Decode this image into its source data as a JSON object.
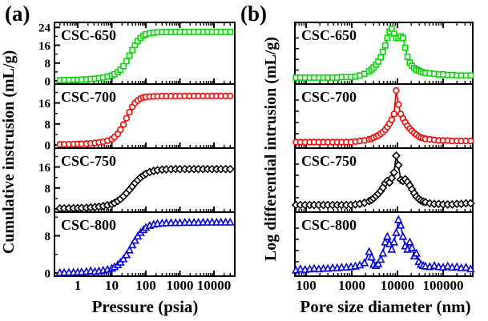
{
  "figure": {
    "description": "Mercury intrusion porosimetry curves of CSC samples"
  },
  "chart_data": [
    {
      "type": "line",
      "panel": "(a)",
      "xlabel": "Pressure (psia)",
      "ylabel": "Cumulative instrusion (mL/g)",
      "x_scale": "log",
      "x_ticks": [
        1,
        10,
        100,
        1000,
        10000
      ],
      "x_range": [
        0.25,
        38000
      ],
      "grid": false,
      "legend": "labels inside each stacked subplot",
      "series": [
        {
          "name": "CSC-650",
          "color": "#00DC00",
          "marker": "square",
          "y_ticks": [
            0,
            8,
            16,
            24
          ],
          "y_max": 24.8,
          "x": [
            0.3,
            0.4,
            0.55,
            0.75,
            1,
            1.3,
            1.8,
            2.4,
            3.2,
            4.2,
            5.6,
            7.5,
            10,
            12,
            15,
            18,
            22,
            27,
            33,
            40,
            48,
            58,
            70,
            85,
            100,
            130,
            170,
            220,
            300,
            400,
            550,
            750,
            1000,
            1400,
            1900,
            2600,
            3500,
            4800,
            6500,
            8800,
            12000,
            16000,
            22000,
            30000
          ],
          "y": [
            0.3,
            0.35,
            0.4,
            0.45,
            0.5,
            0.6,
            0.7,
            0.85,
            1.0,
            1.2,
            1.5,
            1.9,
            2.4,
            3.0,
            3.9,
            5.0,
            6.6,
            8.8,
            11.3,
            13.8,
            16.0,
            17.9,
            19.3,
            20.3,
            20.9,
            21.4,
            21.6,
            21.8,
            21.85,
            21.9,
            21.9,
            21.95,
            22,
            22,
            22,
            22,
            22,
            22,
            22,
            22,
            22,
            22,
            22,
            22
          ]
        },
        {
          "name": "CSC-700",
          "color": "#FF0000",
          "marker": "circle",
          "y_ticks": [
            0,
            8,
            16
          ],
          "y_max": 22,
          "x": [
            0.3,
            0.4,
            0.55,
            0.75,
            1,
            1.3,
            1.8,
            2.4,
            3.2,
            4.2,
            5.6,
            7.5,
            10,
            12,
            15,
            18,
            22,
            27,
            33,
            40,
            48,
            58,
            70,
            85,
            100,
            130,
            170,
            220,
            300,
            400,
            550,
            750,
            1000,
            1400,
            1900,
            2600,
            3500,
            4800,
            6500,
            8800,
            12000,
            16000,
            22000,
            30000
          ],
          "y": [
            0.2,
            0.22,
            0.25,
            0.3,
            0.35,
            0.4,
            0.5,
            0.6,
            0.75,
            0.95,
            1.2,
            1.6,
            2.2,
            3.0,
            4.2,
            5.8,
            7.8,
            10.2,
            12.5,
            14.5,
            16.0,
            17.0,
            17.7,
            18.1,
            18.3,
            18.45,
            18.5,
            18.55,
            18.6,
            18.6,
            18.6,
            18.6,
            18.6,
            18.65,
            18.65,
            18.65,
            18.65,
            18.65,
            18.65,
            18.65,
            18.65,
            18.65,
            18.65,
            18.65
          ]
        },
        {
          "name": "CSC-750",
          "color": "#000000",
          "marker": "diamond",
          "y_ticks": [
            0,
            8,
            16
          ],
          "y_max": 22,
          "x": [
            0.3,
            0.4,
            0.55,
            0.75,
            1,
            1.3,
            1.8,
            2.4,
            3.2,
            4.2,
            5.6,
            7.5,
            10,
            12,
            15,
            18,
            22,
            27,
            33,
            40,
            48,
            58,
            70,
            85,
            100,
            130,
            170,
            220,
            300,
            400,
            550,
            750,
            1000,
            1400,
            1900,
            2600,
            3500,
            4800,
            6500,
            8800,
            12000,
            16000,
            22000,
            30000
          ],
          "y": [
            0.2,
            0.22,
            0.25,
            0.28,
            0.32,
            0.38,
            0.45,
            0.55,
            0.68,
            0.85,
            1.1,
            1.4,
            1.8,
            2.3,
            3.0,
            3.8,
            4.8,
            6.0,
            7.3,
            8.6,
            9.9,
            11.0,
            12.0,
            12.8,
            13.4,
            14.1,
            14.5,
            14.8,
            15.0,
            15.1,
            15.15,
            15.2,
            15.2,
            15.2,
            15.2,
            15.2,
            15.2,
            15.2,
            15.2,
            15.2,
            15.2,
            15.2,
            15.2,
            15.2
          ]
        },
        {
          "name": "CSC-800",
          "color": "#0000EE",
          "marker": "triangle",
          "y_ticks": [
            0,
            8
          ],
          "y_max": 12.4,
          "x": [
            0.3,
            0.4,
            0.55,
            0.75,
            1,
            1.3,
            1.8,
            2.4,
            3.2,
            4.2,
            5.6,
            7.5,
            10,
            12,
            15,
            18,
            22,
            27,
            33,
            40,
            48,
            58,
            70,
            85,
            100,
            130,
            170,
            220,
            300,
            400,
            550,
            750,
            1000,
            1400,
            1900,
            2600,
            3500,
            4800,
            6500,
            8800,
            12000,
            16000,
            22000,
            30000
          ],
          "y": [
            0.05,
            0.08,
            0.1,
            0.12,
            0.15,
            0.2,
            0.3,
            0.45,
            0.3,
            0.4,
            0.55,
            0.75,
            1.0,
            1.3,
            1.75,
            2.3,
            3.0,
            3.9,
            4.9,
            6.0,
            7.0,
            7.9,
            8.7,
            9.3,
            9.8,
            10.2,
            10.45,
            10.6,
            10.7,
            10.75,
            10.8,
            10.8,
            10.8,
            10.85,
            10.85,
            10.85,
            10.85,
            10.9,
            10.9,
            10.9,
            10.9,
            10.9,
            10.9,
            10.9
          ]
        }
      ]
    },
    {
      "type": "line",
      "panel": "(b)",
      "xlabel": "Pore size diameter (nm)",
      "ylabel": "Log differential intrusion (mL/g)",
      "x_scale": "log",
      "x_ticks": [
        100,
        1000,
        10000,
        100000
      ],
      "x_range": [
        55,
        450000
      ],
      "grid": false,
      "y_normalized": true,
      "y_axis_note": "no numeric y tick labels shown",
      "series": [
        {
          "name": "CSC-650",
          "color": "#00DC00",
          "marker": "square",
          "y_ticks": [],
          "y_max": 1,
          "x": [
            60,
            75,
            95,
            120,
            150,
            190,
            240,
            300,
            380,
            480,
            600,
            760,
            960,
            1200,
            1500,
            1900,
            2400,
            2700,
            3000,
            3400,
            3800,
            4300,
            4800,
            5400,
            6000,
            6700,
            7500,
            8400,
            9400,
            10500,
            11800,
            13200,
            14800,
            16600,
            18600,
            20800,
            23300,
            26100,
            29200,
            32700,
            36600,
            41000,
            51000,
            64000,
            80000,
            100000,
            126000,
            158000,
            200000,
            250000,
            316000,
            400000
          ],
          "y": [
            0.06,
            0.06,
            0.06,
            0.06,
            0.06,
            0.06,
            0.06,
            0.06,
            0.06,
            0.06,
            0.07,
            0.07,
            0.07,
            0.08,
            0.1,
            0.13,
            0.18,
            0.21,
            0.25,
            0.3,
            0.36,
            0.44,
            0.54,
            0.66,
            0.8,
            0.92,
            0.97,
            0.88,
            0.8,
            0.8,
            0.83,
            0.8,
            0.62,
            0.45,
            0.34,
            0.28,
            0.24,
            0.21,
            0.19,
            0.17,
            0.16,
            0.15,
            0.14,
            0.13,
            0.12,
            0.12,
            0.11,
            0.11,
            0.1,
            0.1,
            0.1,
            0.1
          ]
        },
        {
          "name": "CSC-700",
          "color": "#FF0000",
          "marker": "circle",
          "y_ticks": [],
          "y_max": 1,
          "x": [
            60,
            75,
            95,
            120,
            150,
            190,
            240,
            300,
            380,
            480,
            600,
            760,
            960,
            1200,
            1500,
            1900,
            2400,
            2700,
            3000,
            3400,
            3800,
            4300,
            4800,
            5400,
            6000,
            6700,
            7500,
            8400,
            9400,
            10500,
            11800,
            13200,
            14800,
            16600,
            18600,
            20800,
            23300,
            26100,
            29200,
            32700,
            36600,
            41000,
            51000,
            64000,
            80000,
            100000,
            126000,
            158000,
            200000,
            250000,
            316000,
            400000
          ],
          "y": [
            0.05,
            0.05,
            0.05,
            0.05,
            0.05,
            0.05,
            0.05,
            0.05,
            0.05,
            0.05,
            0.05,
            0.05,
            0.05,
            0.06,
            0.07,
            0.08,
            0.1,
            0.11,
            0.13,
            0.15,
            0.17,
            0.2,
            0.23,
            0.27,
            0.32,
            0.38,
            0.45,
            0.55,
            0.97,
            0.72,
            0.55,
            0.47,
            0.4,
            0.34,
            0.29,
            0.25,
            0.21,
            0.18,
            0.15,
            0.13,
            0.12,
            0.11,
            0.1,
            0.09,
            0.08,
            0.08,
            0.08,
            0.07,
            0.07,
            0.07,
            0.07,
            0.07
          ]
        },
        {
          "name": "CSC-750",
          "color": "#000000",
          "marker": "diamond",
          "y_ticks": [],
          "y_max": 1,
          "x": [
            60,
            75,
            95,
            120,
            150,
            190,
            240,
            300,
            380,
            480,
            600,
            760,
            960,
            1200,
            1500,
            1900,
            2400,
            2700,
            3000,
            3400,
            3800,
            4300,
            4800,
            5400,
            6000,
            6700,
            7500,
            8400,
            9400,
            10500,
            11800,
            13200,
            14800,
            16600,
            18600,
            20800,
            23300,
            26100,
            29200,
            32700,
            36600,
            41000,
            51000,
            64000,
            80000,
            100000,
            126000,
            158000,
            200000,
            250000,
            316000,
            400000
          ],
          "y": [
            0.07,
            0.07,
            0.07,
            0.07,
            0.07,
            0.07,
            0.07,
            0.07,
            0.07,
            0.07,
            0.07,
            0.07,
            0.07,
            0.08,
            0.09,
            0.11,
            0.14,
            0.16,
            0.19,
            0.23,
            0.27,
            0.32,
            0.38,
            0.46,
            0.5,
            0.47,
            0.55,
            0.65,
            0.95,
            0.78,
            0.52,
            0.5,
            0.53,
            0.48,
            0.42,
            0.35,
            0.28,
            0.22,
            0.18,
            0.15,
            0.13,
            0.12,
            0.1,
            0.09,
            0.09,
            0.08,
            0.08,
            0.08,
            0.09,
            0.09,
            0.1,
            0.1
          ]
        },
        {
          "name": "CSC-800",
          "color": "#0000EE",
          "marker": "triangle",
          "y_ticks": [],
          "y_max": 1,
          "x": [
            60,
            75,
            95,
            120,
            150,
            190,
            240,
            300,
            380,
            480,
            600,
            760,
            960,
            1200,
            1500,
            1900,
            2400,
            2700,
            3000,
            3400,
            3800,
            4300,
            4800,
            5400,
            6000,
            6700,
            7500,
            8400,
            9400,
            10500,
            11800,
            13200,
            14800,
            16600,
            18600,
            20800,
            23300,
            26100,
            29200,
            32700,
            36600,
            41000,
            51000,
            64000,
            80000,
            100000,
            126000,
            158000,
            200000,
            250000,
            316000,
            400000
          ],
          "y": [
            0.05,
            0.07,
            0.06,
            0.07,
            0.08,
            0.07,
            0.08,
            0.08,
            0.09,
            0.09,
            0.1,
            0.1,
            0.11,
            0.12,
            0.14,
            0.18,
            0.38,
            0.28,
            0.15,
            0.13,
            0.16,
            0.24,
            0.35,
            0.55,
            0.65,
            0.52,
            0.42,
            0.55,
            0.72,
            0.95,
            0.85,
            0.65,
            0.48,
            0.42,
            0.55,
            0.45,
            0.3,
            0.35,
            0.2,
            0.15,
            0.13,
            0.12,
            0.11,
            0.13,
            0.11,
            0.1,
            0.12,
            0.1,
            0.11,
            0.09,
            0.1,
            0.07
          ]
        }
      ]
    }
  ]
}
